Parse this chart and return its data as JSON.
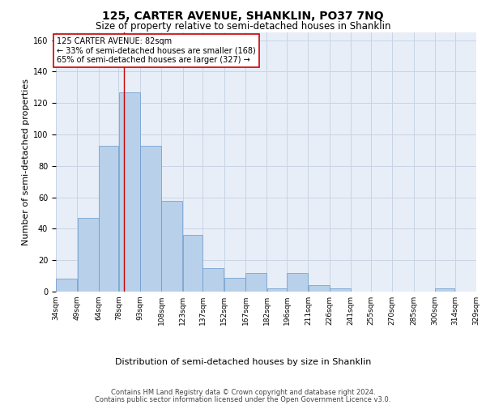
{
  "title": "125, CARTER AVENUE, SHANKLIN, PO37 7NQ",
  "subtitle": "Size of property relative to semi-detached houses in Shanklin",
  "xlabel": "Distribution of semi-detached houses by size in Shanklin",
  "ylabel": "Number of semi-detached properties",
  "footer_line1": "Contains HM Land Registry data © Crown copyright and database right 2024.",
  "footer_line2": "Contains public sector information licensed under the Open Government Licence v3.0.",
  "annotation_title": "125 CARTER AVENUE: 82sqm",
  "annotation_line1": "← 33% of semi-detached houses are smaller (168)",
  "annotation_line2": "65% of semi-detached houses are larger (327) →",
  "bar_left_edges": [
    34,
    49,
    64,
    78,
    93,
    108,
    123,
    137,
    152,
    167,
    182,
    196,
    211,
    226,
    241,
    255,
    270,
    285,
    300,
    314
  ],
  "bar_widths": [
    15,
    15,
    14,
    15,
    15,
    15,
    14,
    15,
    15,
    15,
    14,
    15,
    15,
    15,
    14,
    15,
    15,
    15,
    14,
    15
  ],
  "bar_heights": [
    8,
    47,
    93,
    127,
    93,
    58,
    36,
    15,
    9,
    12,
    2,
    12,
    4,
    2,
    0,
    0,
    0,
    0,
    2,
    0
  ],
  "bar_color": "#b8d0ea",
  "bar_edgecolor": "#6699cc",
  "vline_color": "#cc0000",
  "vline_x": 82,
  "ylim": [
    0,
    165
  ],
  "yticks": [
    0,
    20,
    40,
    60,
    80,
    100,
    120,
    140,
    160
  ],
  "xtick_labels": [
    "34sqm",
    "49sqm",
    "64sqm",
    "78sqm",
    "93sqm",
    "108sqm",
    "123sqm",
    "137sqm",
    "152sqm",
    "167sqm",
    "182sqm",
    "196sqm",
    "211sqm",
    "226sqm",
    "241sqm",
    "255sqm",
    "270sqm",
    "285sqm",
    "300sqm",
    "314sqm",
    "329sqm"
  ],
  "grid_color": "#c8d4e4",
  "background_color": "#e8eef8",
  "box_edgecolor": "#cc0000",
  "title_fontsize": 10,
  "subtitle_fontsize": 8.5,
  "annotation_fontsize": 7,
  "ylabel_fontsize": 8,
  "xlabel_fontsize": 8,
  "tick_fontsize": 6.5,
  "footer_fontsize": 6
}
